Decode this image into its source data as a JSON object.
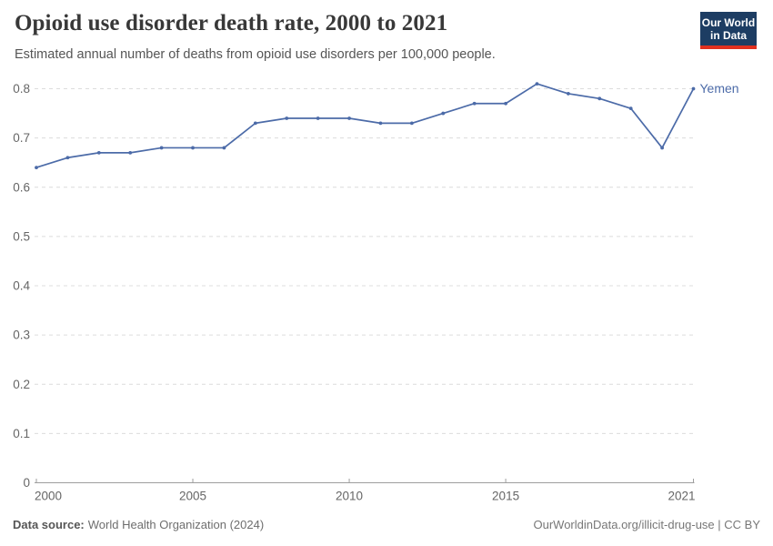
{
  "header": {
    "title": "Opioid use disorder death rate, 2000 to 2021",
    "subtitle": "Estimated annual number of deaths from opioid use disorders per 100,000 people."
  },
  "logo": {
    "line1": "Our World",
    "line2": "in Data",
    "background_color": "#1d3d63",
    "accent_color": "#e0301f"
  },
  "chart_data": {
    "type": "line",
    "title": "Opioid use disorder death rate, 2000 to 2021",
    "xlabel": "",
    "ylabel": "",
    "x": [
      2000,
      2001,
      2002,
      2003,
      2004,
      2005,
      2006,
      2007,
      2008,
      2009,
      2010,
      2011,
      2012,
      2013,
      2014,
      2015,
      2016,
      2017,
      2018,
      2019,
      2020,
      2021
    ],
    "series": [
      {
        "name": "Yemen",
        "color": "#4c6ba8",
        "values": [
          0.64,
          0.66,
          0.67,
          0.67,
          0.68,
          0.68,
          0.68,
          0.73,
          0.74,
          0.74,
          0.74,
          0.73,
          0.73,
          0.75,
          0.77,
          0.77,
          0.81,
          0.79,
          0.78,
          0.76,
          0.68,
          0.8
        ]
      }
    ],
    "xlim": [
      2000,
      2021
    ],
    "ylim": [
      0,
      0.85
    ],
    "xticks": [
      2000,
      2005,
      2010,
      2015,
      2021
    ],
    "xtick_labels": [
      "2000",
      "2005",
      "2010",
      "2015",
      "2021"
    ],
    "yticks": [
      0,
      0.1,
      0.2,
      0.3,
      0.4,
      0.5,
      0.6,
      0.7,
      0.8
    ],
    "ytick_labels": [
      "0",
      "0.1",
      "0.2",
      "0.3",
      "0.4",
      "0.5",
      "0.6",
      "0.7",
      "0.8"
    ],
    "grid": "horizontal-dashed",
    "legend": "entity-label-at-line-end",
    "entity_label": "Yemen"
  },
  "footer": {
    "datasource_label": "Data source:",
    "datasource_value": "World Health Organization (2024)",
    "credit": "OurWorldinData.org/illicit-drug-use | CC BY"
  },
  "colors": {
    "line": "#4c6ba8",
    "grid": "#dcdcdc",
    "axis": "#9e9e9e",
    "tick_text": "#666666",
    "title_text": "#383838",
    "subtitle_text": "#555555"
  }
}
